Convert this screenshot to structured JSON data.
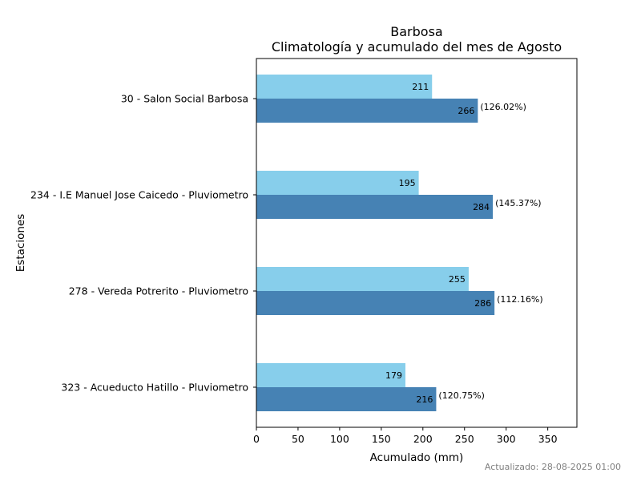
{
  "chart_data": {
    "type": "bar",
    "orientation": "horizontal",
    "title": "Barbosa",
    "subtitle": "Climatología y acumulado del mes de Agosto",
    "xlabel": "Acumulado (mm)",
    "ylabel": "Estaciones",
    "xlim": [
      0,
      385
    ],
    "xticks": [
      0,
      50,
      100,
      150,
      200,
      250,
      300,
      350
    ],
    "grid": false,
    "categories": [
      "30 - Salon Social Barbosa",
      "234 - I.E Manuel Jose Caicedo - Pluviometro",
      "278 - Vereda Potrerito - Pluviometro",
      "323 - Acueducto Hatillo - Pluviometro"
    ],
    "series": [
      {
        "values": [
          211,
          195,
          255,
          179
        ],
        "color": "#87CEEB"
      },
      {
        "values": [
          266,
          284,
          286,
          216
        ],
        "color": "#4682B4",
        "annotations": [
          "(126.02%)",
          "(145.37%)",
          "(112.16%)",
          "(120.75%)"
        ]
      }
    ]
  },
  "footer": {
    "updated": "Actualizado: 28-08-2025 01:00"
  }
}
